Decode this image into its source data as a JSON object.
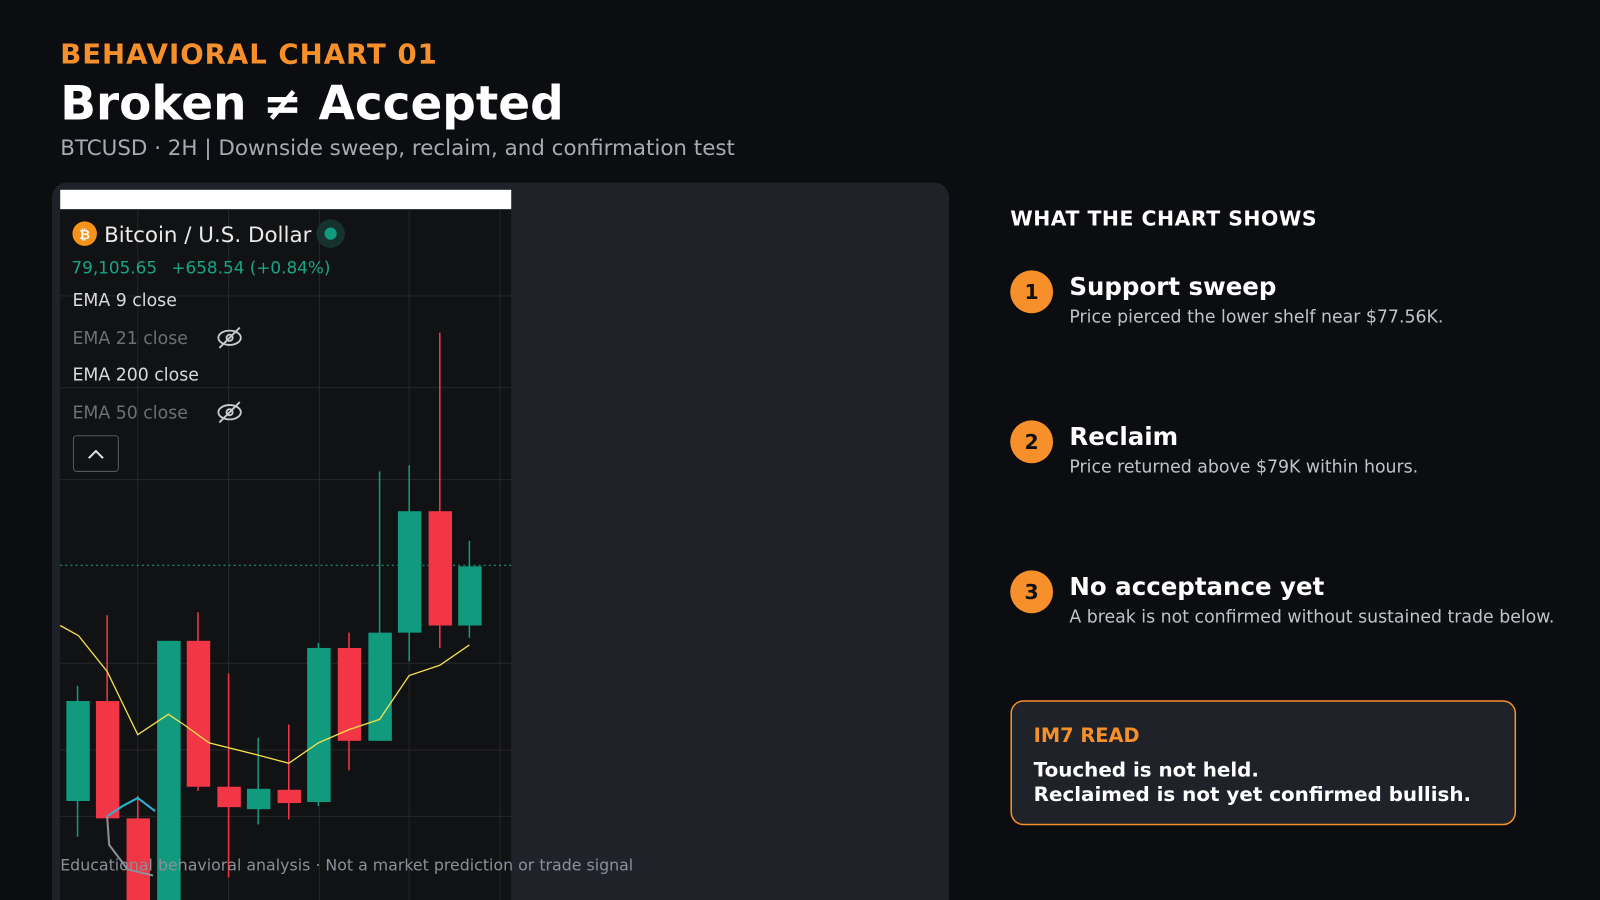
{
  "header": {
    "kicker": "BEHAVIORAL CHART 01",
    "title": "Broken ≠ Accepted",
    "subtitle": "BTCUSD · 2H | Downside sweep, reclaim, and confirmation test"
  },
  "chart_panel": {
    "instrument": "Bitcoin / U.S. Dollar",
    "price": "79,105.65",
    "change": "+658.54 (+0.84%)",
    "indicators": [
      "EMA 9 close",
      "EMA 21 close",
      "EMA 200 close",
      "EMA 50 close"
    ],
    "footer": "Educational behavioral analysis · Not a market prediction or trade signal"
  },
  "sidebar": {
    "heading": "WHAT THE CHART SHOWS",
    "items": [
      {
        "number": "1",
        "title": "Support sweep",
        "text": "Price pierced the lower shelf near $77.56K."
      },
      {
        "number": "2",
        "title": "Reclaim",
        "text": "Price returned above $79K within hours."
      },
      {
        "number": "3",
        "title": "No acceptance yet",
        "text": "A break is not confirmed without sustained trade below."
      }
    ],
    "read": {
      "label": "IM7 READ",
      "lines": [
        "Touched is not held.",
        "Reclaimed is not yet confirmed bullish."
      ]
    }
  }
}
